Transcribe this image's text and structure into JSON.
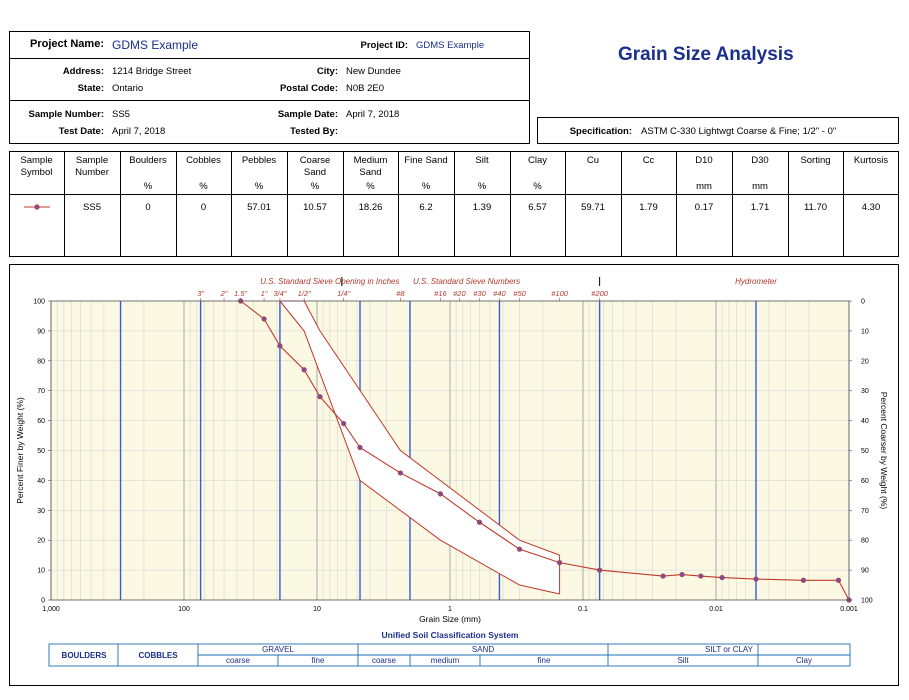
{
  "project": {
    "name_label": "Project Name:",
    "name": "GDMS Example",
    "id_label": "Project ID:",
    "id": "GDMS Example",
    "address_label": "Address:",
    "address": "1214 Bridge Street",
    "city_label": "City:",
    "city": "New Dundee",
    "state_label": "State:",
    "state": "Ontario",
    "postal_label": "Postal Code:",
    "postal": "N0B 2E0",
    "sample_number_label": "Sample Number:",
    "sample_number": "SS5",
    "sample_date_label": "Sample Date:",
    "sample_date": "April 7, 2018",
    "test_date_label": "Test Date:",
    "test_date": "April 7, 2018",
    "tested_by_label": "Tested By:",
    "tested_by": ""
  },
  "report_title": "Grain Size Analysis",
  "specification": {
    "label": "Specification:",
    "value": "ASTM C-330 Lightwgt Coarse & Fine; 1/2\" - 0\""
  },
  "table": {
    "headers": [
      {
        "l1": "Sample",
        "l2": "Symbol",
        "unit": ""
      },
      {
        "l1": "Sample",
        "l2": "Number",
        "unit": ""
      },
      {
        "l1": "Boulders",
        "l2": "",
        "unit": "%"
      },
      {
        "l1": "Cobbles",
        "l2": "",
        "unit": "%"
      },
      {
        "l1": "Pebbles",
        "l2": "",
        "unit": "%"
      },
      {
        "l1": "Coarse",
        "l2": "Sand",
        "unit": "%"
      },
      {
        "l1": "Medium",
        "l2": "Sand",
        "unit": "%"
      },
      {
        "l1": "Fine Sand",
        "l2": "",
        "unit": "%"
      },
      {
        "l1": "Silt",
        "l2": "",
        "unit": "%"
      },
      {
        "l1": "Clay",
        "l2": "",
        "unit": "%"
      },
      {
        "l1": "Cu",
        "l2": "",
        "unit": ""
      },
      {
        "l1": "Cc",
        "l2": "",
        "unit": ""
      },
      {
        "l1": "D10",
        "l2": "",
        "unit": "mm"
      },
      {
        "l1": "D30",
        "l2": "",
        "unit": "mm"
      },
      {
        "l1": "Sorting",
        "l2": "",
        "unit": ""
      },
      {
        "l1": "Kurtosis",
        "l2": "",
        "unit": ""
      }
    ],
    "row": [
      "",
      "SS5",
      "0",
      "0",
      "57.01",
      "10.57",
      "18.26",
      "6.2",
      "1.39",
      "6.57",
      "59.71",
      "1.79",
      "0.17",
      "1.71",
      "11.70",
      "4.30"
    ]
  },
  "chart_data": {
    "type": "line",
    "xlabel": "Grain Size (mm)",
    "ylabel": "Percent Finer by Weight (%)",
    "ylabel_right": "Percent Coarser by Weight (%)",
    "x_scale": "log",
    "xlim": [
      1000,
      0.001
    ],
    "ylim": [
      0,
      100
    ],
    "x_tick_labels": [
      {
        "value": 1000,
        "label": "1,000"
      },
      {
        "value": 100,
        "label": "100"
      },
      {
        "value": 10,
        "label": "10"
      },
      {
        "value": 1,
        "label": "1"
      },
      {
        "value": 0.1,
        "label": "0.1"
      },
      {
        "value": 0.01,
        "label": "0.01"
      },
      {
        "value": 0.001,
        "label": "0.001"
      }
    ],
    "y_ticks_left": [
      "0",
      "10",
      "20",
      "30",
      "40",
      "50",
      "60",
      "70",
      "80",
      "90",
      "100"
    ],
    "y_ticks_right": [
      "100",
      "90",
      "80",
      "70",
      "60",
      "50",
      "40",
      "30",
      "20",
      "10",
      "0"
    ],
    "top_section_labels": [
      {
        "text": "U.S. Standard Sieve Opening in Inches",
        "x": 8
      },
      {
        "text": "U.S. Standard Sieve Numbers",
        "x": 0.75
      },
      {
        "text": "Hydrometer",
        "x": 0.005
      }
    ],
    "top_section_dividers": [
      6.5,
      0.075
    ],
    "sieves": [
      {
        "label": "3\"",
        "size": 75
      },
      {
        "label": "2\"",
        "size": 50
      },
      {
        "label": "1.5\"",
        "size": 37.5
      },
      {
        "label": "1\"",
        "size": 25
      },
      {
        "label": "3/4\"",
        "size": 19
      },
      {
        "label": "1/2\"",
        "size": 12.5
      },
      {
        "label": "1/4\"",
        "size": 6.3
      },
      {
        "label": "#8",
        "size": 2.36
      },
      {
        "label": "#16",
        "size": 1.18
      },
      {
        "label": "#20",
        "size": 0.85
      },
      {
        "label": "#30",
        "size": 0.6
      },
      {
        "label": "#40",
        "size": 0.425
      },
      {
        "label": "#50",
        "size": 0.3
      },
      {
        "label": "#100",
        "size": 0.15
      },
      {
        "label": "#200",
        "size": 0.075
      }
    ],
    "blue_gridlines": [
      300,
      75,
      19,
      4.75,
      2,
      0.425,
      0.075,
      0.005
    ],
    "series": [
      {
        "name": "SS5",
        "color": "#c0392b",
        "x": [
          37.5,
          25,
          19,
          12.5,
          9.5,
          6.3,
          4.75,
          2.36,
          1.18,
          0.6,
          0.3,
          0.15,
          0.075,
          0.025,
          0.018,
          0.013,
          0.009,
          0.005,
          0.0022,
          0.0012,
          0.001
        ],
        "y": [
          100,
          94,
          85,
          77,
          68,
          59,
          51,
          42.5,
          35.5,
          26,
          17,
          12.5,
          10,
          8,
          8.5,
          8,
          7.5,
          7,
          6.6,
          6.6,
          0
        ]
      }
    ],
    "spec_envelope": {
      "color": "#c0392b",
      "upper": {
        "x": [
          12.5,
          9.5,
          2.36,
          0.3,
          0.15
        ],
        "y": [
          100,
          90,
          50,
          20,
          15
        ]
      },
      "lower": {
        "x": [
          19,
          12.5,
          4.75,
          1.18,
          0.3,
          0.15
        ],
        "y": [
          100,
          90,
          40,
          20,
          5,
          2
        ]
      },
      "close_x": 0.15
    },
    "uscs": {
      "title": "Unified Soil Classification System",
      "boulders": "BOULDERS",
      "cobbles": "COBBLES",
      "gravel": "GRAVEL",
      "gravel_coarse": "coarse",
      "gravel_fine": "fine",
      "sand": "SAND",
      "sand_coarse": "coarse",
      "sand_medium": "medium",
      "sand_fine": "fine",
      "silt_or_clay": "SILT or CLAY",
      "silt": "Silt",
      "clay": "Clay"
    }
  }
}
